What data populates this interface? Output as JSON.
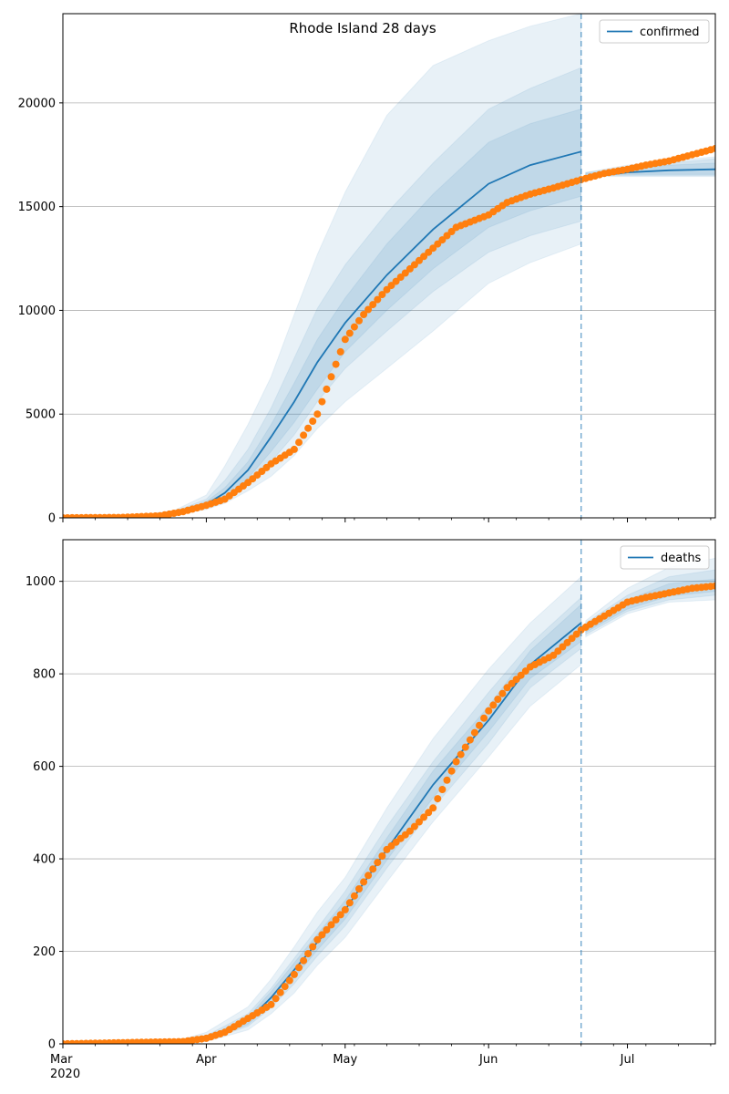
{
  "title": "Rhode Island 28 days",
  "colors": {
    "model": "#1f77b4",
    "observed": "#ff7f0e",
    "band": "#c6dbef",
    "grid": "#b0b0b0"
  },
  "chart_data": [
    {
      "type": "line",
      "title": "Rhode Island 28 days",
      "legend": "top-right",
      "grid": "y",
      "ylim": [
        0,
        24300
      ],
      "yticks": [
        0,
        5000,
        10000,
        15000,
        20000
      ],
      "xlim": [
        "2020-03-01",
        "2020-07-20"
      ],
      "xticks": [
        "2020-03-01",
        "2020-04-01",
        "2020-05-01",
        "2020-06-01",
        "2020-07-01"
      ],
      "xtick_labels": [
        "Mar\n2020",
        "Apr",
        "May",
        "Jun",
        "Jul"
      ],
      "forecast_start": "2020-06-21",
      "series": [
        {
          "name": "confirmed",
          "role": "model",
          "x": [
            "2020-03-01",
            "2020-03-15",
            "2020-03-25",
            "2020-04-01",
            "2020-04-05",
            "2020-04-10",
            "2020-04-15",
            "2020-04-20",
            "2020-04-25",
            "2020-05-01",
            "2020-05-10",
            "2020-05-20",
            "2020-06-01",
            "2020-06-10",
            "2020-06-21",
            "2020-06-22",
            "2020-07-01",
            "2020-07-10",
            "2020-07-20"
          ],
          "y": [
            0,
            20,
            200,
            650,
            1200,
            2300,
            3900,
            5600,
            7500,
            9400,
            11700,
            13900,
            16100,
            17000,
            17650,
            16400,
            16650,
            16750,
            16800
          ],
          "bands": [
            {
              "low": [
                0,
                0,
                120,
                400,
                700,
                1300,
                2000,
                3000,
                4300,
                5600,
                7200,
                9000,
                11300,
                12300,
                13200,
                16450,
                16450,
                16450,
                16450
              ],
              "high": [
                0,
                50,
                350,
                1100,
                2500,
                4500,
                6800,
                9800,
                12700,
                15700,
                19400,
                21800,
                23000,
                23700,
                24300,
                16650,
                17000,
                17200,
                17400
              ]
            },
            {
              "low": [
                0,
                0,
                150,
                500,
                850,
                1700,
                2700,
                4000,
                5600,
                7200,
                9000,
                10900,
                12800,
                13600,
                14300,
                16500,
                16500,
                16500,
                16500
              ],
              "high": [
                0,
                40,
                300,
                900,
                1800,
                3300,
                5300,
                7700,
                10100,
                12200,
                14700,
                17100,
                19700,
                20700,
                21700,
                16650,
                16900,
                17100,
                17300
              ]
            },
            {
              "low": [
                0,
                5,
                170,
                560,
                950,
                1900,
                3200,
                4600,
                6200,
                8000,
                10000,
                12000,
                14000,
                14800,
                15500,
                16550,
                16550,
                16550,
                16550
              ],
              "high": [
                0,
                30,
                250,
                780,
                1450,
                2700,
                4500,
                6500,
                8600,
                10600,
                13200,
                15600,
                18100,
                19000,
                19700,
                16600,
                16800,
                17000,
                17100
              ]
            }
          ]
        },
        {
          "name": "",
          "role": "observed",
          "x": [
            "2020-03-01",
            "2020-03-14",
            "2020-03-22",
            "2020-03-27",
            "2020-04-01",
            "2020-04-05",
            "2020-04-10",
            "2020-04-15",
            "2020-04-20",
            "2020-04-25",
            "2020-05-01",
            "2020-05-05",
            "2020-05-10",
            "2020-05-15",
            "2020-05-20",
            "2020-05-25",
            "2020-06-01",
            "2020-06-05",
            "2020-06-10",
            "2020-06-15",
            "2020-06-21",
            "2020-06-26",
            "2020-07-01",
            "2020-07-05",
            "2020-07-10",
            "2020-07-15",
            "2020-07-20"
          ],
          "y": [
            0,
            20,
            100,
            300,
            600,
            900,
            1700,
            2600,
            3300,
            5000,
            8600,
            9800,
            11000,
            12000,
            13000,
            14000,
            14600,
            15200,
            15600,
            15900,
            16300,
            16600,
            16800,
            17000,
            17200,
            17500,
            17800
          ]
        }
      ]
    },
    {
      "type": "line",
      "title": "",
      "legend": "top-right",
      "grid": "y",
      "ylim": [
        0,
        1090
      ],
      "yticks": [
        0,
        200,
        400,
        600,
        800,
        1000
      ],
      "xlim": [
        "2020-03-01",
        "2020-07-20"
      ],
      "xticks": [
        "2020-03-01",
        "2020-04-01",
        "2020-05-01",
        "2020-06-01",
        "2020-07-01"
      ],
      "xtick_labels": [
        "Mar\n2020",
        "Apr",
        "May",
        "Jun",
        "Jul"
      ],
      "forecast_start": "2020-06-21",
      "series": [
        {
          "name": "deaths",
          "role": "model",
          "x": [
            "2020-03-01",
            "2020-03-25",
            "2020-04-01",
            "2020-04-10",
            "2020-04-15",
            "2020-04-20",
            "2020-04-25",
            "2020-05-01",
            "2020-05-10",
            "2020-05-20",
            "2020-06-01",
            "2020-06-10",
            "2020-06-21",
            "2020-06-22",
            "2020-07-01",
            "2020-07-10",
            "2020-07-20"
          ],
          "y": [
            0,
            2,
            10,
            50,
            100,
            160,
            220,
            290,
            420,
            560,
            700,
            820,
            910,
            900,
            950,
            980,
            990
          ],
          "bands": [
            {
              "low": [
                0,
                0,
                5,
                30,
                65,
                110,
                170,
                230,
                350,
                480,
                620,
                730,
                820,
                880,
                930,
                955,
                960
              ],
              "high": [
                0,
                5,
                25,
                80,
                140,
                210,
                285,
                360,
                510,
                660,
                810,
                910,
                1010,
                915,
                985,
                1030,
                1050
              ]
            },
            {
              "low": [
                0,
                1,
                7,
                38,
                78,
                130,
                190,
                255,
                380,
                510,
                650,
                770,
                855,
                885,
                935,
                960,
                970
              ],
              "high": [
                0,
                4,
                18,
                65,
                120,
                185,
                250,
                330,
                470,
                610,
                760,
                865,
                965,
                910,
                970,
                1010,
                1025
              ]
            },
            {
              "low": [
                0,
                1,
                8,
                42,
                86,
                143,
                203,
                270,
                397,
                532,
                675,
                790,
                870,
                890,
                940,
                968,
                978
              ],
              "high": [
                0,
                3,
                14,
                58,
                113,
                175,
                237,
                310,
                445,
                590,
                730,
                850,
                950,
                905,
                960,
                995,
                1005
              ]
            }
          ]
        },
        {
          "name": "",
          "role": "observed",
          "x": [
            "2020-03-01",
            "2020-03-27",
            "2020-04-01",
            "2020-04-05",
            "2020-04-10",
            "2020-04-15",
            "2020-04-20",
            "2020-04-25",
            "2020-05-01",
            "2020-05-05",
            "2020-05-10",
            "2020-05-15",
            "2020-05-20",
            "2020-05-25",
            "2020-06-01",
            "2020-06-05",
            "2020-06-10",
            "2020-06-15",
            "2020-06-21",
            "2020-06-26",
            "2020-07-01",
            "2020-07-05",
            "2020-07-10",
            "2020-07-15",
            "2020-07-20"
          ],
          "y": [
            0,
            5,
            12,
            25,
            55,
            85,
            150,
            225,
            290,
            350,
            420,
            460,
            510,
            610,
            720,
            770,
            815,
            840,
            895,
            925,
            955,
            965,
            975,
            985,
            990
          ]
        }
      ]
    }
  ]
}
